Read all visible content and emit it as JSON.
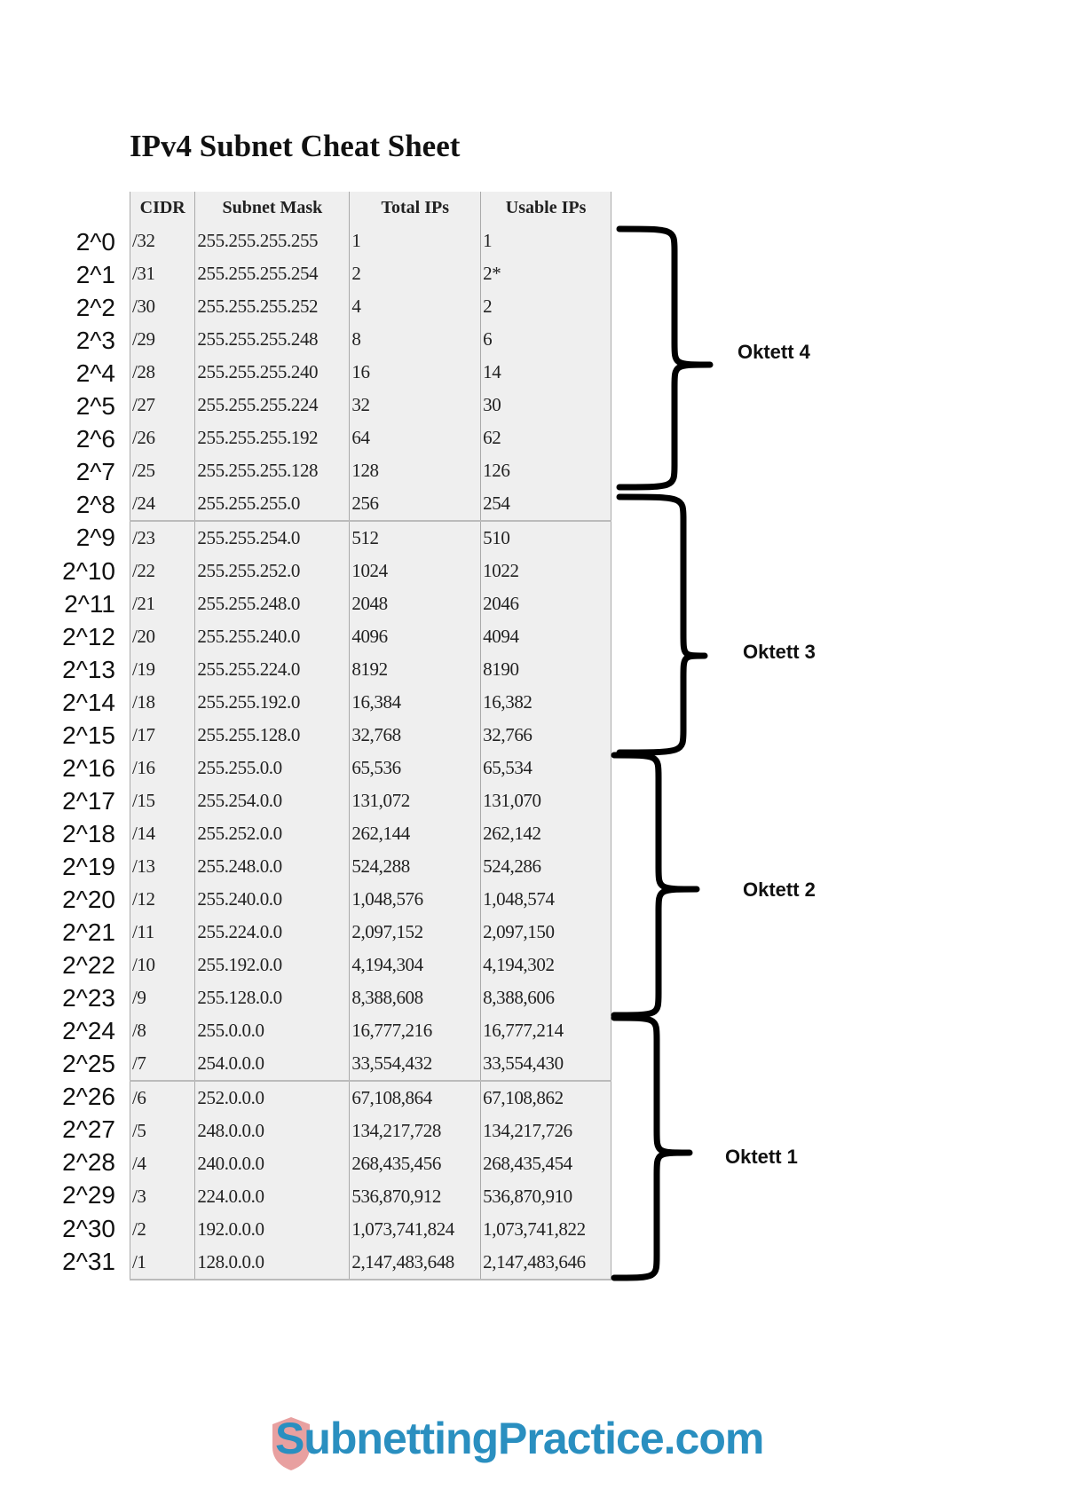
{
  "title": "IPv4 Subnet Cheat Sheet",
  "columns": [
    "CIDR",
    "Subnet Mask",
    "Total IPs",
    "Usable IPs"
  ],
  "rows": [
    {
      "power": "2^0",
      "cidr": "/32",
      "mask": "255.255.255.255",
      "total": "1",
      "usable": "1"
    },
    {
      "power": "2^1",
      "cidr": "/31",
      "mask": "255.255.255.254",
      "total": "2",
      "usable": "2*"
    },
    {
      "power": "2^2",
      "cidr": "/30",
      "mask": "255.255.255.252",
      "total": "4",
      "usable": "2"
    },
    {
      "power": "2^3",
      "cidr": "/29",
      "mask": "255.255.255.248",
      "total": "8",
      "usable": "6"
    },
    {
      "power": "2^4",
      "cidr": "/28",
      "mask": "255.255.255.240",
      "total": "16",
      "usable": "14"
    },
    {
      "power": "2^5",
      "cidr": "/27",
      "mask": "255.255.255.224",
      "total": "32",
      "usable": "30"
    },
    {
      "power": "2^6",
      "cidr": "/26",
      "mask": "255.255.255.192",
      "total": "64",
      "usable": "62"
    },
    {
      "power": "2^7",
      "cidr": "/25",
      "mask": "255.255.255.128",
      "total": "128",
      "usable": "126"
    },
    {
      "power": "2^8",
      "cidr": "/24",
      "mask": "255.255.255.0",
      "total": "256",
      "usable": "254"
    },
    {
      "power": "2^9",
      "cidr": "/23",
      "mask": "255.255.254.0",
      "total": "512",
      "usable": "510"
    },
    {
      "power": "2^10",
      "cidr": "/22",
      "mask": "255.255.252.0",
      "total": "1024",
      "usable": "1022"
    },
    {
      "power": "2^11",
      "cidr": "/21",
      "mask": "255.255.248.0",
      "total": "2048",
      "usable": "2046"
    },
    {
      "power": "2^12",
      "cidr": "/20",
      "mask": "255.255.240.0",
      "total": "4096",
      "usable": "4094"
    },
    {
      "power": "2^13",
      "cidr": "/19",
      "mask": "255.255.224.0",
      "total": "8192",
      "usable": "8190"
    },
    {
      "power": "2^14",
      "cidr": "/18",
      "mask": "255.255.192.0",
      "total": "16,384",
      "usable": "16,382"
    },
    {
      "power": "2^15",
      "cidr": "/17",
      "mask": "255.255.128.0",
      "total": "32,768",
      "usable": "32,766"
    },
    {
      "power": "2^16",
      "cidr": "/16",
      "mask": "255.255.0.0",
      "total": "65,536",
      "usable": "65,534"
    },
    {
      "power": "2^17",
      "cidr": "/15",
      "mask": "255.254.0.0",
      "total": "131,072",
      "usable": "131,070"
    },
    {
      "power": "2^18",
      "cidr": "/14",
      "mask": "255.252.0.0",
      "total": "262,144",
      "usable": "262,142"
    },
    {
      "power": "2^19",
      "cidr": "/13",
      "mask": "255.248.0.0",
      "total": "524,288",
      "usable": "524,286"
    },
    {
      "power": "2^20",
      "cidr": "/12",
      "mask": "255.240.0.0",
      "total": "1,048,576",
      "usable": "1,048,574"
    },
    {
      "power": "2^21",
      "cidr": "/11",
      "mask": "255.224.0.0",
      "total": "2,097,152",
      "usable": "2,097,150"
    },
    {
      "power": "2^22",
      "cidr": "/10",
      "mask": "255.192.0.0",
      "total": "4,194,304",
      "usable": "4,194,302"
    },
    {
      "power": "2^23",
      "cidr": "/9",
      "mask": "255.128.0.0",
      "total": "8,388,608",
      "usable": "8,388,606"
    },
    {
      "power": "2^24",
      "cidr": "/8",
      "mask": "255.0.0.0",
      "total": "16,777,216",
      "usable": "16,777,214"
    },
    {
      "power": "2^25",
      "cidr": "/7",
      "mask": "254.0.0.0",
      "total": "33,554,432",
      "usable": "33,554,430"
    },
    {
      "power": "2^26",
      "cidr": "/6",
      "mask": "252.0.0.0",
      "total": "67,108,864",
      "usable": "67,108,862"
    },
    {
      "power": "2^27",
      "cidr": "/5",
      "mask": "248.0.0.0",
      "total": "134,217,728",
      "usable": "134,217,726"
    },
    {
      "power": "2^28",
      "cidr": "/4",
      "mask": "240.0.0.0",
      "total": "268,435,456",
      "usable": "268,435,454"
    },
    {
      "power": "2^29",
      "cidr": "/3",
      "mask": "224.0.0.0",
      "total": "536,870,912",
      "usable": "536,870,910"
    },
    {
      "power": "2^30",
      "cidr": "/2",
      "mask": "192.0.0.0",
      "total": "1,073,741,824",
      "usable": "1,073,741,822"
    },
    {
      "power": "2^31",
      "cidr": "/1",
      "mask": "128.0.0.0",
      "total": "2,147,483,648",
      "usable": "2,147,483,646"
    }
  ],
  "octets": [
    {
      "label": "Oktett 4"
    },
    {
      "label": "Oktett 3"
    },
    {
      "label": "Oktett 2"
    },
    {
      "label": "Oktett 1"
    }
  ],
  "logo": {
    "text": "SubnettingPractice.com",
    "icon": "shield-icon",
    "color": "#2a8fc0",
    "shield_color": "#e8a0a0"
  }
}
